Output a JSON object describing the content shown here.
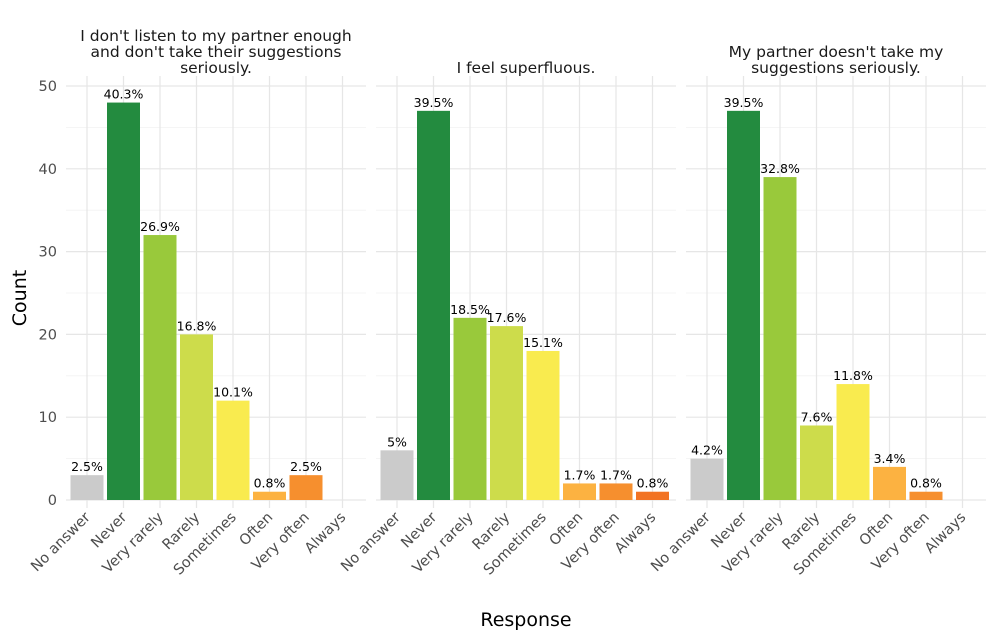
{
  "chart_data": {
    "type": "bar",
    "xlabel": "Response",
    "ylabel": "Count",
    "ylim": [
      0,
      50
    ],
    "yticks": [
      0,
      10,
      20,
      30,
      40,
      50
    ],
    "categories": [
      "No answer",
      "Never",
      "Very rarely",
      "Rarely",
      "Sometimes",
      "Often",
      "Very often",
      "Always"
    ],
    "colors": [
      "#cbcbcb",
      "#238b3f",
      "#99c93b",
      "#cddc4b",
      "#f9eb4f",
      "#fcb241",
      "#f68f2e",
      "#f27323"
    ],
    "facets": [
      {
        "title": [
          "I don't listen to my partner enough",
          "and don't take their suggestions",
          "seriously."
        ],
        "values": [
          3,
          48,
          32,
          20,
          12,
          1,
          3,
          0
        ],
        "labels": [
          "2.5%",
          "40.3%",
          "26.9%",
          "16.8%",
          "10.1%",
          "0.8%",
          "2.5%",
          null
        ]
      },
      {
        "title": [
          "I feel superfluous."
        ],
        "values": [
          6,
          47,
          22,
          21,
          18,
          2,
          2,
          1
        ],
        "labels": [
          "5%",
          "39.5%",
          "18.5%",
          "17.6%",
          "15.1%",
          "1.7%",
          "1.7%",
          "0.8%"
        ]
      },
      {
        "title": [
          "My partner doesn't take my",
          "suggestions seriously."
        ],
        "values": [
          5,
          47,
          39,
          9,
          14,
          4,
          1,
          0
        ],
        "labels": [
          "4.2%",
          "39.5%",
          "32.8%",
          "7.6%",
          "11.8%",
          "3.4%",
          "0.8%",
          null
        ]
      }
    ]
  }
}
